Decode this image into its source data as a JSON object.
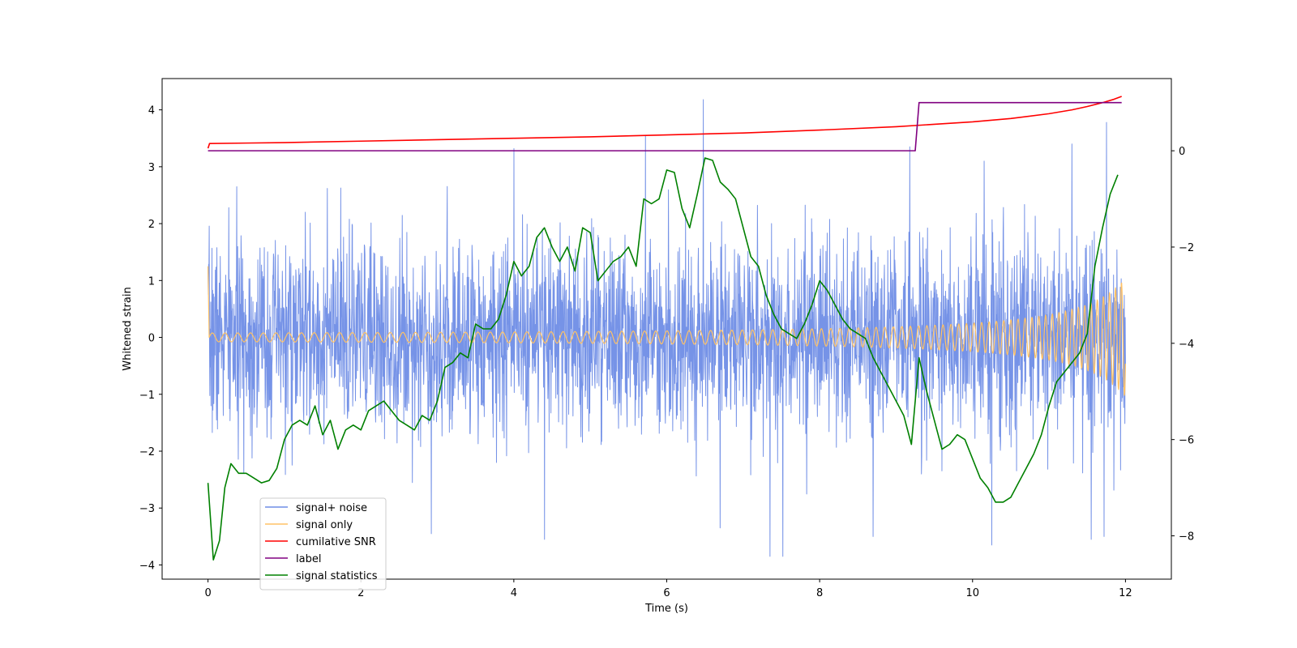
{
  "chart_data": {
    "type": "line",
    "xlabel": "Time (s)",
    "ylabel": "Whitened strain",
    "xlim": [
      -0.6,
      12.6
    ],
    "ylim": [
      -4.25,
      4.55
    ],
    "y2lim": [
      -8.9,
      1.5
    ],
    "x_ticks": [
      0,
      2,
      4,
      6,
      8,
      10,
      12
    ],
    "x_tick_labels": [
      "0",
      "2",
      "4",
      "6",
      "8",
      "10",
      "12"
    ],
    "y_ticks": [
      -4,
      -3,
      -2,
      -1,
      0,
      1,
      2,
      3,
      4
    ],
    "y_tick_labels": [
      "−4",
      "−3",
      "−2",
      "−1",
      "0",
      "1",
      "2",
      "3",
      "4"
    ],
    "y2_ticks": [
      -8,
      -6,
      -4,
      -2,
      0
    ],
    "y2_tick_labels": [
      "−8",
      "−6",
      "−4",
      "−2",
      "0"
    ],
    "grid": false,
    "legend_position": "lower-left",
    "series": [
      {
        "name": "signal+ noise",
        "color": "#6f8de6",
        "axis": "left",
        "kind": "noise",
        "x_range": [
          0,
          12
        ],
        "samples": 3000,
        "sigma": 0.85,
        "seed": 7,
        "spikes": [
          {
            "x": 6.48,
            "y": 4.18
          },
          {
            "x": 5.72,
            "y": 3.55
          },
          {
            "x": 4.0,
            "y": 3.32
          },
          {
            "x": 9.18,
            "y": 3.35
          },
          {
            "x": 11.75,
            "y": 3.78
          },
          {
            "x": 11.3,
            "y": 3.4
          },
          {
            "x": 10.15,
            "y": 3.1
          },
          {
            "x": 7.35,
            "y": -3.85
          },
          {
            "x": 7.52,
            "y": -3.85
          },
          {
            "x": 10.25,
            "y": -3.65
          },
          {
            "x": 4.4,
            "y": -3.55
          },
          {
            "x": 2.92,
            "y": -3.45
          },
          {
            "x": 11.55,
            "y": -3.55
          },
          {
            "x": 11.72,
            "y": -3.5
          },
          {
            "x": 6.7,
            "y": -3.35
          },
          {
            "x": 8.7,
            "y": -3.5
          }
        ]
      },
      {
        "name": "signal only",
        "color": "#ffc266",
        "axis": "left",
        "kind": "chirp",
        "x_range": [
          0,
          12
        ],
        "f0": 6.0,
        "f1": 13.0,
        "a0": 0.045,
        "a1": 1.05,
        "initial_spike": 1.25
      },
      {
        "name": "cumilative SNR",
        "color": "#ff0000",
        "axis": "right",
        "x": [
          0.0,
          0.02,
          0.5,
          1,
          2,
          3,
          4,
          5,
          6,
          7,
          8,
          9,
          9.5,
          10,
          10.5,
          11,
          11.3,
          11.5,
          11.7,
          11.85,
          11.95
        ],
        "y": [
          0.05,
          0.15,
          0.16,
          0.17,
          0.2,
          0.23,
          0.26,
          0.29,
          0.33,
          0.37,
          0.43,
          0.5,
          0.55,
          0.6,
          0.67,
          0.77,
          0.85,
          0.92,
          1.0,
          1.07,
          1.13
        ]
      },
      {
        "name": "label",
        "color": "#800080",
        "axis": "right",
        "x": [
          0,
          9.25,
          9.3,
          11.95
        ],
        "y": [
          0,
          0,
          1,
          1
        ]
      },
      {
        "name": "signal statistics",
        "color": "#008000",
        "axis": "right",
        "x": [
          0,
          0.07,
          0.15,
          0.22,
          0.3,
          0.4,
          0.5,
          0.6,
          0.7,
          0.8,
          0.9,
          1.0,
          1.1,
          1.2,
          1.3,
          1.4,
          1.5,
          1.6,
          1.7,
          1.8,
          1.9,
          2.0,
          2.1,
          2.2,
          2.3,
          2.4,
          2.5,
          2.6,
          2.7,
          2.8,
          2.9,
          3.0,
          3.1,
          3.2,
          3.3,
          3.4,
          3.5,
          3.6,
          3.7,
          3.8,
          3.9,
          4.0,
          4.1,
          4.2,
          4.3,
          4.4,
          4.5,
          4.6,
          4.7,
          4.8,
          4.9,
          5.0,
          5.1,
          5.2,
          5.3,
          5.4,
          5.5,
          5.6,
          5.7,
          5.8,
          5.9,
          6.0,
          6.1,
          6.2,
          6.3,
          6.4,
          6.5,
          6.6,
          6.7,
          6.8,
          6.9,
          7.0,
          7.1,
          7.2,
          7.3,
          7.4,
          7.5,
          7.6,
          7.7,
          7.8,
          7.9,
          8.0,
          8.1,
          8.2,
          8.3,
          8.4,
          8.5,
          8.6,
          8.7,
          8.8,
          8.9,
          9.0,
          9.1,
          9.2,
          9.3,
          9.4,
          9.5,
          9.6,
          9.7,
          9.8,
          9.9,
          10.0,
          10.1,
          10.2,
          10.3,
          10.4,
          10.5,
          10.6,
          10.7,
          10.8,
          10.9,
          11.0,
          11.1,
          11.2,
          11.3,
          11.4,
          11.5,
          11.6,
          11.7,
          11.8,
          11.9
        ],
        "y": [
          -6.9,
          -8.5,
          -8.1,
          -7.0,
          -6.5,
          -6.7,
          -6.7,
          -6.8,
          -6.9,
          -6.85,
          -6.6,
          -6.0,
          -5.7,
          -5.6,
          -5.7,
          -5.3,
          -5.9,
          -5.6,
          -6.2,
          -5.8,
          -5.7,
          -5.8,
          -5.4,
          -5.3,
          -5.2,
          -5.4,
          -5.6,
          -5.7,
          -5.8,
          -5.5,
          -5.6,
          -5.2,
          -4.5,
          -4.4,
          -4.2,
          -4.3,
          -3.6,
          -3.7,
          -3.7,
          -3.5,
          -3.0,
          -2.3,
          -2.6,
          -2.4,
          -1.8,
          -1.6,
          -2.0,
          -2.3,
          -2.0,
          -2.5,
          -1.6,
          -1.7,
          -2.7,
          -2.5,
          -2.3,
          -2.2,
          -2.0,
          -2.4,
          -1.0,
          -1.1,
          -1.0,
          -0.4,
          -0.45,
          -1.2,
          -1.6,
          -0.9,
          -0.15,
          -0.2,
          -0.65,
          -0.8,
          -1.0,
          -1.6,
          -2.2,
          -2.4,
          -3.0,
          -3.4,
          -3.7,
          -3.8,
          -3.9,
          -3.6,
          -3.2,
          -2.7,
          -2.9,
          -3.2,
          -3.5,
          -3.7,
          -3.8,
          -3.9,
          -4.3,
          -4.6,
          -4.9,
          -5.2,
          -5.5,
          -6.1,
          -4.3,
          -5.0,
          -5.6,
          -6.2,
          -6.1,
          -5.9,
          -6.0,
          -6.4,
          -6.8,
          -7.0,
          -7.3,
          -7.3,
          -7.2,
          -6.9,
          -6.6,
          -6.3,
          -5.9,
          -5.3,
          -4.8,
          -4.6,
          -4.4,
          -4.2,
          -3.8,
          -2.4,
          -1.6,
          -0.9,
          -0.5
        ]
      }
    ]
  }
}
